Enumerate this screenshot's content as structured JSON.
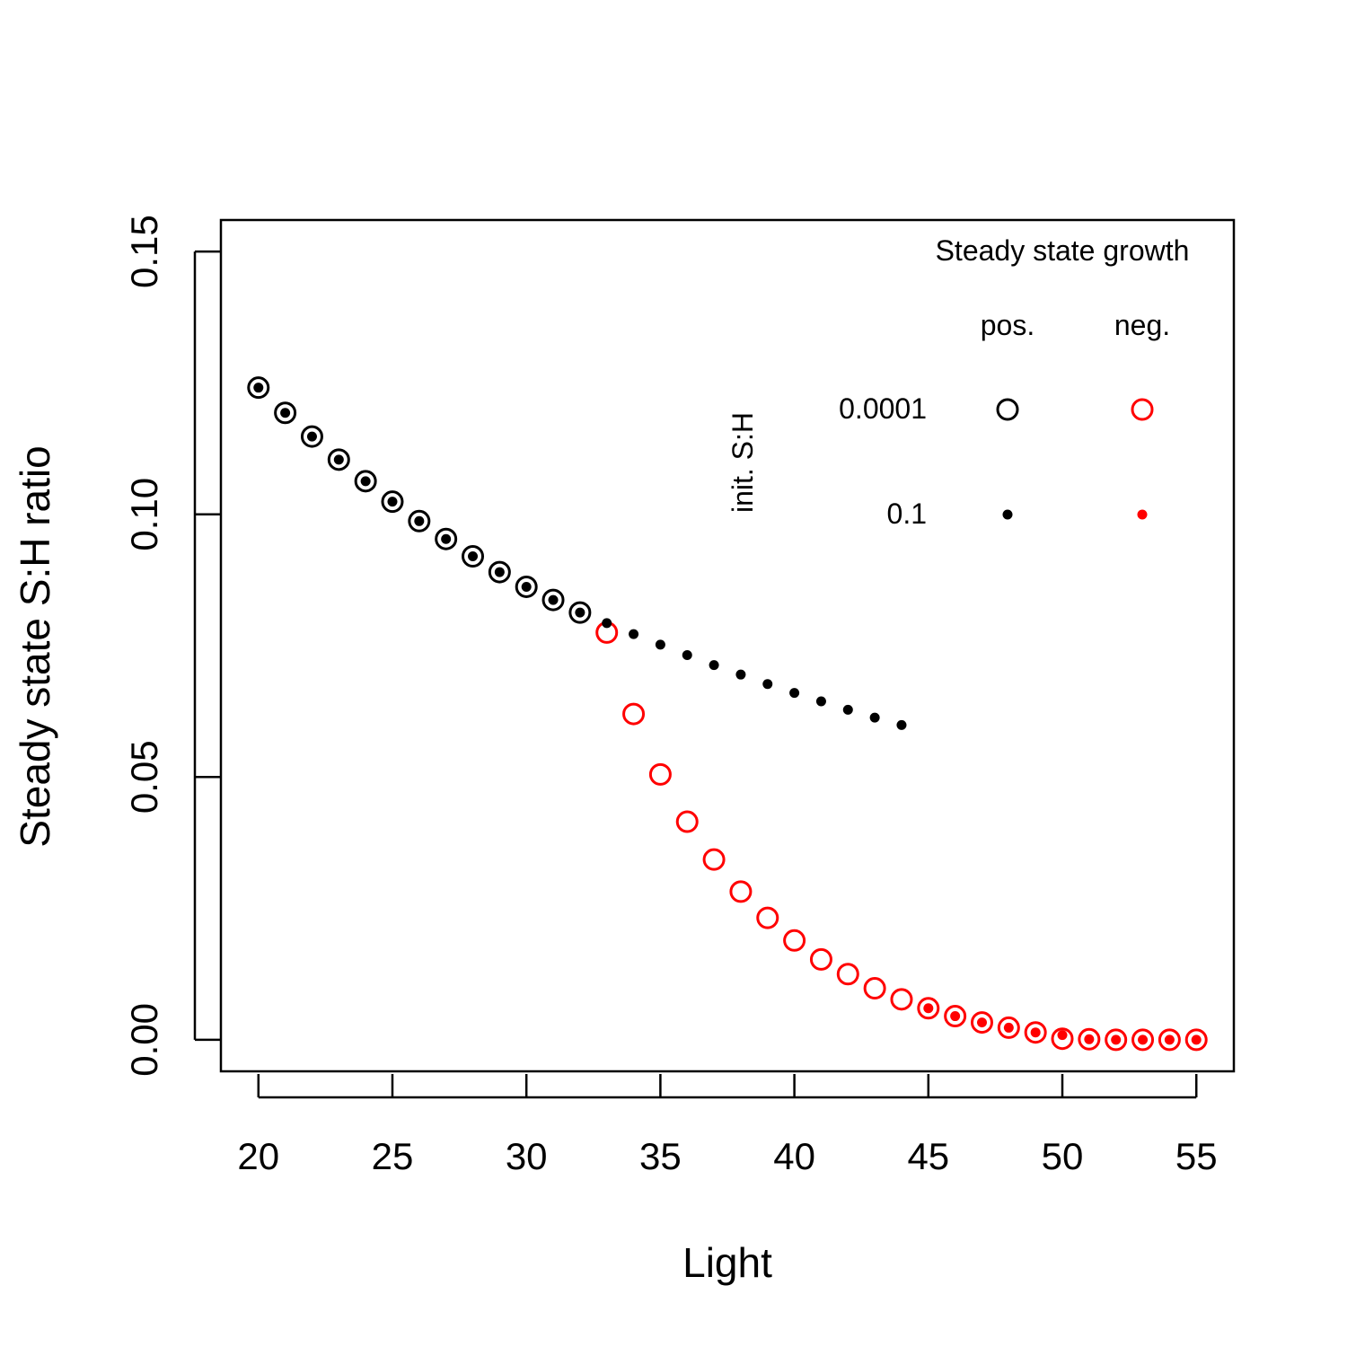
{
  "chart_data": {
    "type": "scatter",
    "xlabel": "Light",
    "ylabel": "Steady state S:H ratio",
    "xlim": [
      18.6,
      56.4
    ],
    "ylim": [
      -0.006,
      0.156
    ],
    "xticks": [
      20,
      25,
      30,
      35,
      40,
      45,
      50,
      55
    ],
    "yticks": [
      0.0,
      0.05,
      0.1,
      0.15
    ],
    "xtick_labels": [
      "20",
      "25",
      "30",
      "35",
      "40",
      "45",
      "50",
      "55"
    ],
    "ytick_labels": [
      "0.00",
      "0.05",
      "0.10",
      "0.15"
    ],
    "grid": false,
    "legend": {
      "position": "top-right",
      "title": "Steady state growth",
      "column_headers": [
        "pos.",
        "neg."
      ],
      "row_axis_label": "init. S:H",
      "row_labels": [
        "0.0001",
        "0.1"
      ]
    },
    "colors": {
      "pos": "#000000",
      "neg": "#ff0000"
    },
    "series": [
      {
        "marker": "open-circle",
        "color": "#000000",
        "x": [
          20,
          21,
          22,
          23,
          24,
          25,
          26,
          27,
          28,
          29,
          30,
          31,
          32
        ],
        "y": [
          0.1241,
          0.1193,
          0.1148,
          0.1104,
          0.1063,
          0.1024,
          0.0987,
          0.0953,
          0.092,
          0.089,
          0.0862,
          0.0837,
          0.0813
        ]
      },
      {
        "marker": "open-circle",
        "color": "#ff0000",
        "x": [
          33,
          34,
          35,
          36,
          37,
          38,
          39,
          40,
          41,
          42,
          43,
          44,
          45,
          46,
          47,
          48,
          49,
          50,
          51,
          52,
          53,
          54,
          55
        ],
        "y": [
          0.0775,
          0.062,
          0.0505,
          0.0415,
          0.0343,
          0.0282,
          0.0232,
          0.0189,
          0.0153,
          0.0125,
          0.0098,
          0.0077,
          0.006,
          0.0045,
          0.0033,
          0.0023,
          0.0014,
          0.0002,
          0.0001,
          0.0,
          0.0,
          0.0,
          0.0
        ]
      },
      {
        "marker": "dot",
        "color": "#000000",
        "x": [
          20,
          21,
          22,
          23,
          24,
          25,
          26,
          27,
          28,
          29,
          30,
          31,
          32,
          33,
          34,
          35,
          36,
          37,
          38,
          39,
          40,
          41,
          42,
          43,
          44
        ],
        "y": [
          0.1241,
          0.1193,
          0.1148,
          0.1104,
          0.1063,
          0.1024,
          0.0987,
          0.0953,
          0.092,
          0.089,
          0.0862,
          0.0837,
          0.0813,
          0.0793,
          0.0772,
          0.0752,
          0.0732,
          0.0713,
          0.0695,
          0.0677,
          0.066,
          0.0644,
          0.0628,
          0.0613,
          0.0599
        ]
      },
      {
        "marker": "dot",
        "color": "#ff0000",
        "x": [
          45,
          46,
          47,
          48,
          49,
          50,
          51,
          52,
          53,
          54,
          55
        ],
        "y": [
          0.006,
          0.0045,
          0.0033,
          0.0023,
          0.0014,
          0.0009,
          0.0001,
          0.0,
          0.0,
          0.0,
          0.0
        ]
      }
    ]
  }
}
